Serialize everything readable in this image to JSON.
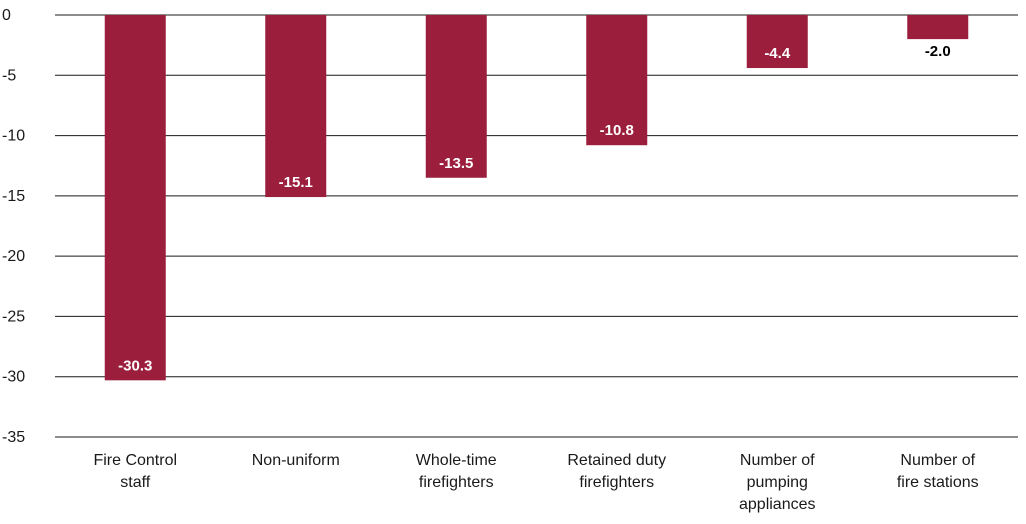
{
  "chart_data": {
    "type": "bar",
    "title": "",
    "xlabel": "",
    "ylabel": "",
    "categories": [
      [
        "Fire Control",
        "staff"
      ],
      [
        "Non-uniform"
      ],
      [
        "Whole-time",
        "firefighters"
      ],
      [
        "Retained duty",
        "firefighters"
      ],
      [
        "Number of",
        "pumping",
        "appliances"
      ],
      [
        "Number of",
        "fire stations"
      ]
    ],
    "values": [
      -30.3,
      -15.1,
      -13.5,
      -10.8,
      -4.4,
      -2.0
    ],
    "data_labels": [
      "-30.3",
      "-15.1",
      "-13.5",
      "-10.8",
      "-4.4",
      "-2.0"
    ],
    "yticks": [
      0,
      -5,
      -10,
      -15,
      -20,
      -25,
      -30,
      -35
    ],
    "ylim": [
      -35,
      0
    ],
    "grid": true,
    "legend": "none",
    "colors": {
      "bar": "#9b1f3d",
      "gridline": "#1a1a1a",
      "label_inside": "#ffffff",
      "label_outside": "#000000"
    }
  }
}
